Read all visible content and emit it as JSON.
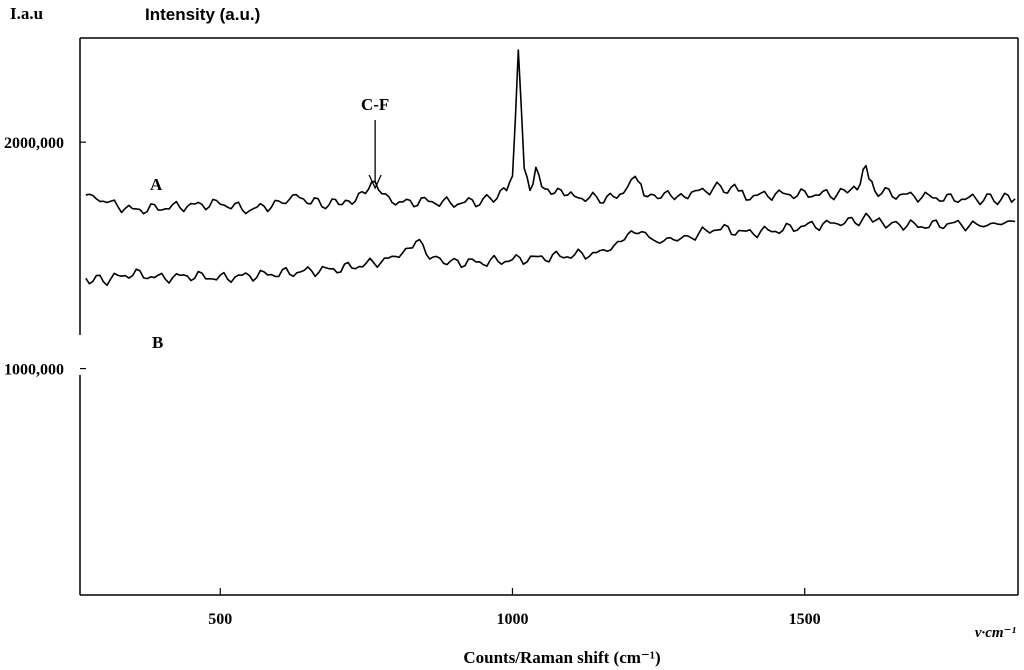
{
  "chart_data": {
    "type": "line",
    "corner_label": "I.a.u",
    "ylabel": "Intensity (a.u.)",
    "xlabel": "Counts/Raman shift (cm⁻¹)",
    "x_unit_label": "v·cm⁻¹",
    "xlim": [
      260,
      1865
    ],
    "ylim": [
      0,
      2460000
    ],
    "x_ticks": [
      500,
      1000,
      1500
    ],
    "x_tick_labels": [
      "500",
      "1000",
      "1500"
    ],
    "y_ticks": [
      1000000,
      2000000
    ],
    "y_tick_labels": [
      "1000,000",
      "2000,000"
    ],
    "grid": false,
    "annotation": {
      "text": "C-F",
      "x": 765
    },
    "series": [
      {
        "name": "A",
        "points": [
          [
            270,
            1770000
          ],
          [
            300,
            1740000
          ],
          [
            350,
            1700000
          ],
          [
            400,
            1710000
          ],
          [
            450,
            1720000
          ],
          [
            500,
            1730000
          ],
          [
            550,
            1700000
          ],
          [
            600,
            1730000
          ],
          [
            630,
            1760000
          ],
          [
            680,
            1720000
          ],
          [
            720,
            1740000
          ],
          [
            765,
            1810000
          ],
          [
            800,
            1730000
          ],
          [
            850,
            1740000
          ],
          [
            900,
            1730000
          ],
          [
            950,
            1740000
          ],
          [
            985,
            1780000
          ],
          [
            1000,
            1850000
          ],
          [
            1010,
            2390000
          ],
          [
            1020,
            1900000
          ],
          [
            1030,
            1790000
          ],
          [
            1040,
            1870000
          ],
          [
            1055,
            1790000
          ],
          [
            1100,
            1760000
          ],
          [
            1150,
            1750000
          ],
          [
            1190,
            1760000
          ],
          [
            1210,
            1870000
          ],
          [
            1225,
            1770000
          ],
          [
            1260,
            1760000
          ],
          [
            1300,
            1770000
          ],
          [
            1350,
            1800000
          ],
          [
            1380,
            1790000
          ],
          [
            1400,
            1760000
          ],
          [
            1450,
            1770000
          ],
          [
            1500,
            1770000
          ],
          [
            1550,
            1770000
          ],
          [
            1590,
            1790000
          ],
          [
            1605,
            1890000
          ],
          [
            1620,
            1790000
          ],
          [
            1650,
            1770000
          ],
          [
            1700,
            1760000
          ],
          [
            1750,
            1750000
          ],
          [
            1800,
            1750000
          ],
          [
            1860,
            1750000
          ]
        ]
      },
      {
        "name": "B",
        "points": [
          [
            270,
            1400000
          ],
          [
            300,
            1390000
          ],
          [
            350,
            1420000
          ],
          [
            400,
            1400000
          ],
          [
            450,
            1410000
          ],
          [
            500,
            1400000
          ],
          [
            550,
            1410000
          ],
          [
            600,
            1420000
          ],
          [
            650,
            1430000
          ],
          [
            700,
            1440000
          ],
          [
            750,
            1460000
          ],
          [
            800,
            1490000
          ],
          [
            835,
            1560000
          ],
          [
            870,
            1480000
          ],
          [
            900,
            1470000
          ],
          [
            950,
            1470000
          ],
          [
            1000,
            1480000
          ],
          [
            1050,
            1490000
          ],
          [
            1100,
            1500000
          ],
          [
            1150,
            1510000
          ],
          [
            1180,
            1550000
          ],
          [
            1215,
            1620000
          ],
          [
            1240,
            1560000
          ],
          [
            1300,
            1580000
          ],
          [
            1350,
            1620000
          ],
          [
            1400,
            1600000
          ],
          [
            1450,
            1610000
          ],
          [
            1500,
            1630000
          ],
          [
            1550,
            1640000
          ],
          [
            1605,
            1660000
          ],
          [
            1650,
            1640000
          ],
          [
            1700,
            1630000
          ],
          [
            1750,
            1640000
          ],
          [
            1800,
            1630000
          ],
          [
            1860,
            1650000
          ]
        ]
      }
    ]
  }
}
